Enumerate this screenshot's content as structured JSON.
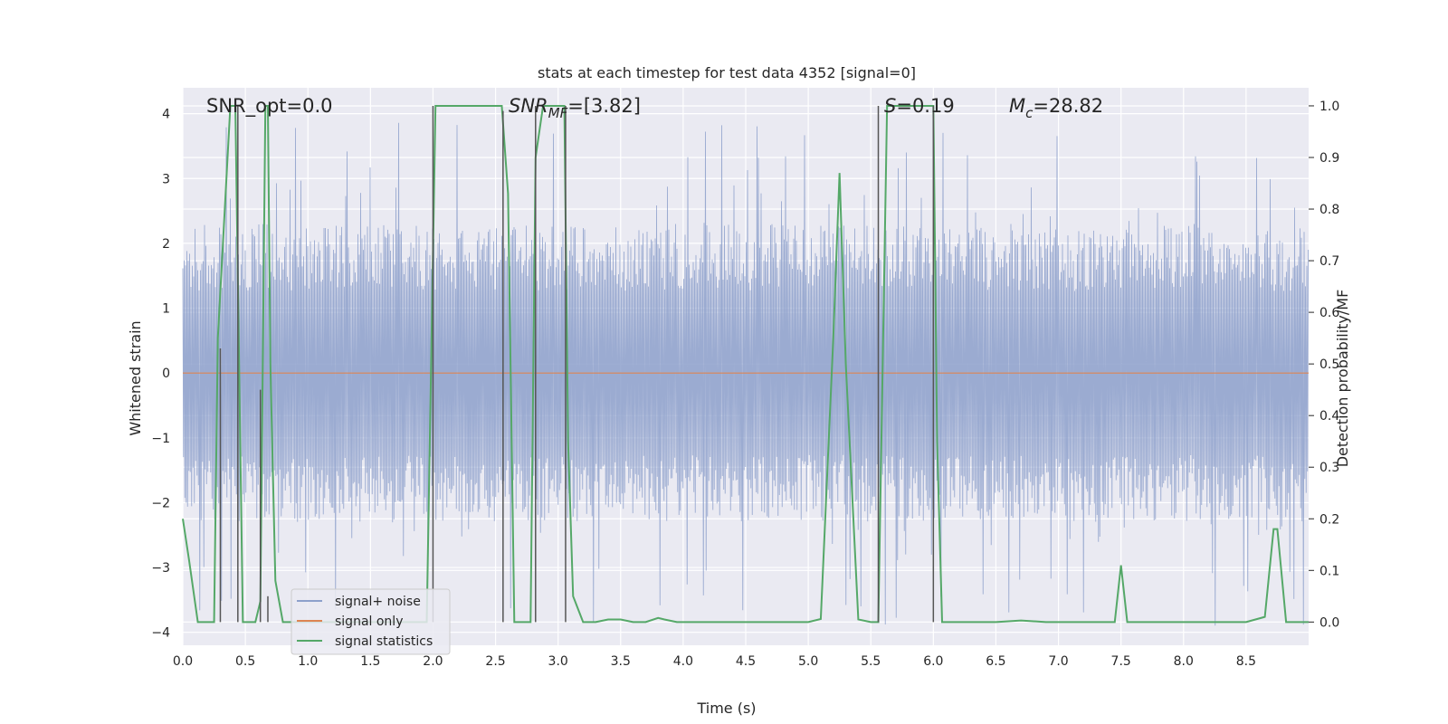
{
  "chart_data": {
    "type": "line",
    "title": "stats at each timestep for test data 4352 [signal=0]",
    "xlabel": "Time (s)",
    "ylabel": "Whitened strain",
    "ylabel_right": "Detection probability/MF",
    "xlim": [
      0.0,
      9.0
    ],
    "ylim": [
      -4.2,
      4.4
    ],
    "ylim_right": [
      -0.045,
      1.035
    ],
    "x_ticks": [
      "0.0",
      "0.5",
      "1.0",
      "1.5",
      "2.0",
      "2.5",
      "3.0",
      "3.5",
      "4.0",
      "4.5",
      "5.0",
      "5.5",
      "6.0",
      "6.5",
      "7.0",
      "7.5",
      "8.0",
      "8.5"
    ],
    "x_tick_values": [
      0,
      0.5,
      1,
      1.5,
      2,
      2.5,
      3,
      3.5,
      4,
      4.5,
      5,
      5.5,
      6,
      6.5,
      7,
      7.5,
      8,
      8.5
    ],
    "y_ticks": [
      "−4",
      "−3",
      "−2",
      "−1",
      "0",
      "1",
      "2",
      "3",
      "4"
    ],
    "y_tick_values": [
      -4,
      -3,
      -2,
      -1,
      0,
      1,
      2,
      3,
      4
    ],
    "y_right_ticks": [
      "0.0",
      "0.1",
      "0.2",
      "0.3",
      "0.4",
      "0.5",
      "0.6",
      "0.7",
      "0.8",
      "0.9",
      "1.0"
    ],
    "y_right_tick_values": [
      0,
      0.1,
      0.2,
      0.3,
      0.4,
      0.5,
      0.6,
      0.7,
      0.8,
      0.9,
      1.0
    ],
    "grid": true,
    "legend_position": "lower-left",
    "annotations": {
      "snr_opt": "SNR_opt=0.0",
      "snr_mf_main": "SNR",
      "snr_mf_sub": "MF",
      "snr_mf_value": "=[3.82]",
      "s_main": "S",
      "s_value": "=0.19",
      "mc_main": "M",
      "mc_sub": "c",
      "mc_value": "=28.82"
    },
    "series": [
      {
        "name": "signal+ noise",
        "color": "#8da0cb",
        "kind": "noise",
        "amplitude_typical": 2.3,
        "amplitude_max": 3.9
      },
      {
        "name": "signal only",
        "color": "#dd8452",
        "values_constant": 0.0
      },
      {
        "name": "signal statistics",
        "color": "#55a868",
        "axis": "right",
        "x": [
          0.0,
          0.05,
          0.12,
          0.25,
          0.28,
          0.38,
          0.42,
          0.48,
          0.52,
          0.58,
          0.62,
          0.66,
          0.68,
          0.7,
          0.74,
          0.8,
          0.9,
          1.5,
          1.95,
          2.02,
          2.08,
          2.55,
          2.6,
          2.65,
          2.7,
          2.78,
          2.82,
          2.88,
          2.95,
          3.05,
          3.08,
          3.12,
          3.2,
          3.3,
          3.4,
          3.5,
          3.6,
          3.7,
          3.8,
          3.85,
          3.95,
          4.5,
          5.0,
          5.1,
          5.2,
          5.25,
          5.3,
          5.4,
          5.5,
          5.56,
          5.63,
          5.7,
          6.0,
          6.03,
          6.07,
          6.2,
          6.5,
          6.7,
          6.9,
          7.2,
          7.45,
          7.5,
          7.55,
          7.8,
          8.5,
          8.65,
          8.72,
          8.75,
          8.82,
          8.9,
          9.0
        ],
        "y": [
          0.2,
          0.12,
          0.0,
          0.0,
          0.55,
          1.0,
          1.0,
          0.0,
          0.0,
          0.0,
          0.04,
          1.0,
          1.0,
          0.5,
          0.08,
          0.0,
          0.0,
          0.0,
          0.0,
          1.0,
          1.0,
          1.0,
          0.83,
          0.0,
          0.0,
          0.0,
          0.9,
          1.0,
          1.0,
          1.0,
          0.35,
          0.05,
          0.0,
          0.0,
          0.005,
          0.005,
          0.0,
          0.0,
          0.008,
          0.005,
          0.0,
          0.0,
          0.0,
          0.006,
          0.55,
          0.87,
          0.5,
          0.005,
          0.0,
          0.0,
          1.0,
          1.0,
          1.0,
          0.35,
          0.0,
          0.0,
          0.0,
          0.003,
          0.0,
          0.0,
          0.0,
          0.11,
          0.0,
          0.0,
          0.0,
          0.01,
          0.18,
          0.18,
          0.0,
          0.0,
          0.0
        ]
      },
      {
        "name": "mf_markers",
        "color": "#555555",
        "kind": "vlines",
        "axis": "right",
        "x": [
          0.3,
          0.44,
          0.62,
          0.68,
          2.0,
          2.56,
          2.82,
          3.06,
          5.56,
          6.0
        ],
        "y_top": [
          0.53,
          1.0,
          0.45,
          0.05,
          1.0,
          0.99,
          1.0,
          1.0,
          1.0,
          1.0
        ]
      }
    ]
  }
}
